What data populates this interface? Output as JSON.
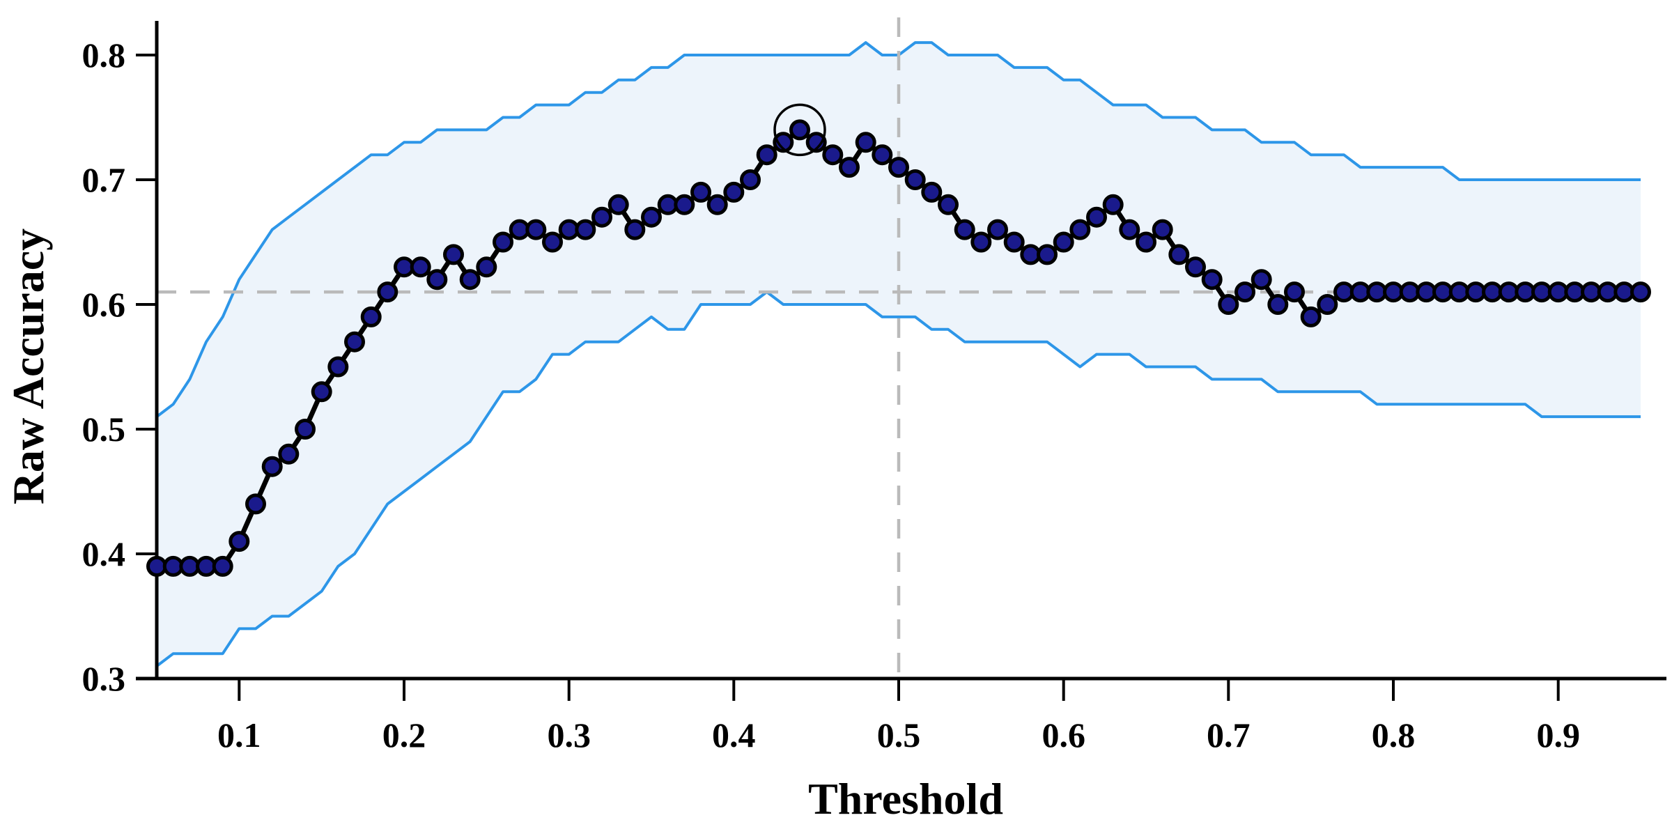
{
  "chart_data": {
    "type": "line",
    "title": "",
    "xlabel": "Threshold",
    "ylabel": "Raw Accuracy",
    "xlim": [
      0.05,
      0.95
    ],
    "ylim": [
      0.3,
      0.83
    ],
    "grid": false,
    "legend": "none",
    "x_tick_labels": [
      "0.1",
      "0.2",
      "0.3",
      "0.4",
      "0.5",
      "0.6",
      "0.7",
      "0.8",
      "0.9"
    ],
    "y_tick_labels": [
      "0.8",
      "0.7",
      "0.6",
      "0.5",
      "0.4",
      "0.3"
    ],
    "x": [
      0.05,
      0.06,
      0.07,
      0.08,
      0.09,
      0.1,
      0.11,
      0.12,
      0.13,
      0.14,
      0.15,
      0.16,
      0.17,
      0.18,
      0.19,
      0.2,
      0.21,
      0.22,
      0.23,
      0.24,
      0.25,
      0.26,
      0.27,
      0.28,
      0.29,
      0.3,
      0.31,
      0.32,
      0.33,
      0.34,
      0.35,
      0.36,
      0.37,
      0.38,
      0.39,
      0.4,
      0.41,
      0.42,
      0.43,
      0.44,
      0.45,
      0.46,
      0.47,
      0.48,
      0.49,
      0.5,
      0.51,
      0.52,
      0.53,
      0.54,
      0.55,
      0.56,
      0.57,
      0.58,
      0.59,
      0.6,
      0.61,
      0.62,
      0.63,
      0.64,
      0.65,
      0.66,
      0.67,
      0.68,
      0.69,
      0.7,
      0.71,
      0.72,
      0.73,
      0.74,
      0.75,
      0.76,
      0.77,
      0.78,
      0.79,
      0.8,
      0.81,
      0.82,
      0.83,
      0.84,
      0.85,
      0.86,
      0.87,
      0.88,
      0.89,
      0.9,
      0.91,
      0.92,
      0.93,
      0.94,
      0.95
    ],
    "series": [
      {
        "name": "raw_accuracy",
        "values": [
          0.39,
          0.39,
          0.39,
          0.39,
          0.39,
          0.41,
          0.44,
          0.47,
          0.48,
          0.5,
          0.53,
          0.55,
          0.57,
          0.59,
          0.61,
          0.63,
          0.63,
          0.62,
          0.64,
          0.62,
          0.63,
          0.65,
          0.66,
          0.66,
          0.65,
          0.66,
          0.66,
          0.67,
          0.68,
          0.66,
          0.67,
          0.68,
          0.68,
          0.69,
          0.68,
          0.69,
          0.7,
          0.72,
          0.73,
          0.74,
          0.73,
          0.72,
          0.71,
          0.73,
          0.72,
          0.71,
          0.7,
          0.69,
          0.68,
          0.66,
          0.65,
          0.66,
          0.65,
          0.64,
          0.64,
          0.65,
          0.66,
          0.67,
          0.68,
          0.66,
          0.65,
          0.66,
          0.64,
          0.63,
          0.62,
          0.6,
          0.61,
          0.62,
          0.6,
          0.61,
          0.59,
          0.6,
          0.61,
          0.61,
          0.61,
          0.61,
          0.61,
          0.61,
          0.61,
          0.61,
          0.61,
          0.61,
          0.61,
          0.61,
          0.61,
          0.61,
          0.61,
          0.61,
          0.61,
          0.61,
          0.61
        ]
      },
      {
        "name": "ci_upper",
        "values": [
          0.51,
          0.52,
          0.54,
          0.57,
          0.59,
          0.62,
          0.64,
          0.66,
          0.67,
          0.68,
          0.69,
          0.7,
          0.71,
          0.72,
          0.72,
          0.73,
          0.73,
          0.74,
          0.74,
          0.74,
          0.74,
          0.75,
          0.75,
          0.76,
          0.76,
          0.76,
          0.77,
          0.77,
          0.78,
          0.78,
          0.79,
          0.79,
          0.8,
          0.8,
          0.8,
          0.8,
          0.8,
          0.8,
          0.8,
          0.8,
          0.8,
          0.8,
          0.8,
          0.81,
          0.8,
          0.8,
          0.81,
          0.81,
          0.8,
          0.8,
          0.8,
          0.8,
          0.79,
          0.79,
          0.79,
          0.78,
          0.78,
          0.77,
          0.76,
          0.76,
          0.76,
          0.75,
          0.75,
          0.75,
          0.74,
          0.74,
          0.74,
          0.73,
          0.73,
          0.73,
          0.72,
          0.72,
          0.72,
          0.71,
          0.71,
          0.71,
          0.71,
          0.71,
          0.71,
          0.7,
          0.7,
          0.7,
          0.7,
          0.7,
          0.7,
          0.7,
          0.7,
          0.7,
          0.7,
          0.7,
          0.7
        ]
      },
      {
        "name": "ci_lower",
        "values": [
          0.31,
          0.32,
          0.32,
          0.32,
          0.32,
          0.34,
          0.34,
          0.35,
          0.35,
          0.36,
          0.37,
          0.39,
          0.4,
          0.42,
          0.44,
          0.45,
          0.46,
          0.47,
          0.48,
          0.49,
          0.51,
          0.53,
          0.53,
          0.54,
          0.56,
          0.56,
          0.57,
          0.57,
          0.57,
          0.58,
          0.59,
          0.58,
          0.58,
          0.6,
          0.6,
          0.6,
          0.6,
          0.61,
          0.6,
          0.6,
          0.6,
          0.6,
          0.6,
          0.6,
          0.59,
          0.59,
          0.59,
          0.58,
          0.58,
          0.57,
          0.57,
          0.57,
          0.57,
          0.57,
          0.57,
          0.56,
          0.55,
          0.56,
          0.56,
          0.56,
          0.55,
          0.55,
          0.55,
          0.55,
          0.54,
          0.54,
          0.54,
          0.54,
          0.53,
          0.53,
          0.53,
          0.53,
          0.53,
          0.53,
          0.52,
          0.52,
          0.52,
          0.52,
          0.52,
          0.52,
          0.52,
          0.52,
          0.52,
          0.52,
          0.51,
          0.51,
          0.51,
          0.51,
          0.51,
          0.51,
          0.51
        ]
      }
    ],
    "reference_lines": {
      "horizontal_y": 0.61,
      "vertical_x": 0.5
    },
    "annotation_circle": {
      "x": 0.44,
      "y": 0.74
    },
    "colors": {
      "band_fill": "#edf4fb",
      "band_edge": "#2d96e8",
      "series_line": "#000000",
      "marker_fill": "#1a1a8c",
      "marker_edge": "#000000",
      "reference_dash": "#bababa",
      "axis": "#000000",
      "text": "#000000"
    }
  }
}
